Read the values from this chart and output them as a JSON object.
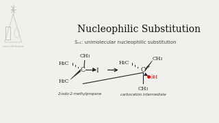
{
  "title": "Nucleophilic Substitution",
  "subtitle": "Sₙ₁: unimolecular nucleophilic substitution",
  "bg_color": "#f0f0ec",
  "title_fontsize": 10,
  "subtitle_fontsize": 5.0,
  "mol1_label": "2-iodo-2-methylpropane",
  "mol2_label": "carbocation intermediate",
  "bond_color": "#222222",
  "dot_color": "#cc1111",
  "text_color": "#111111"
}
